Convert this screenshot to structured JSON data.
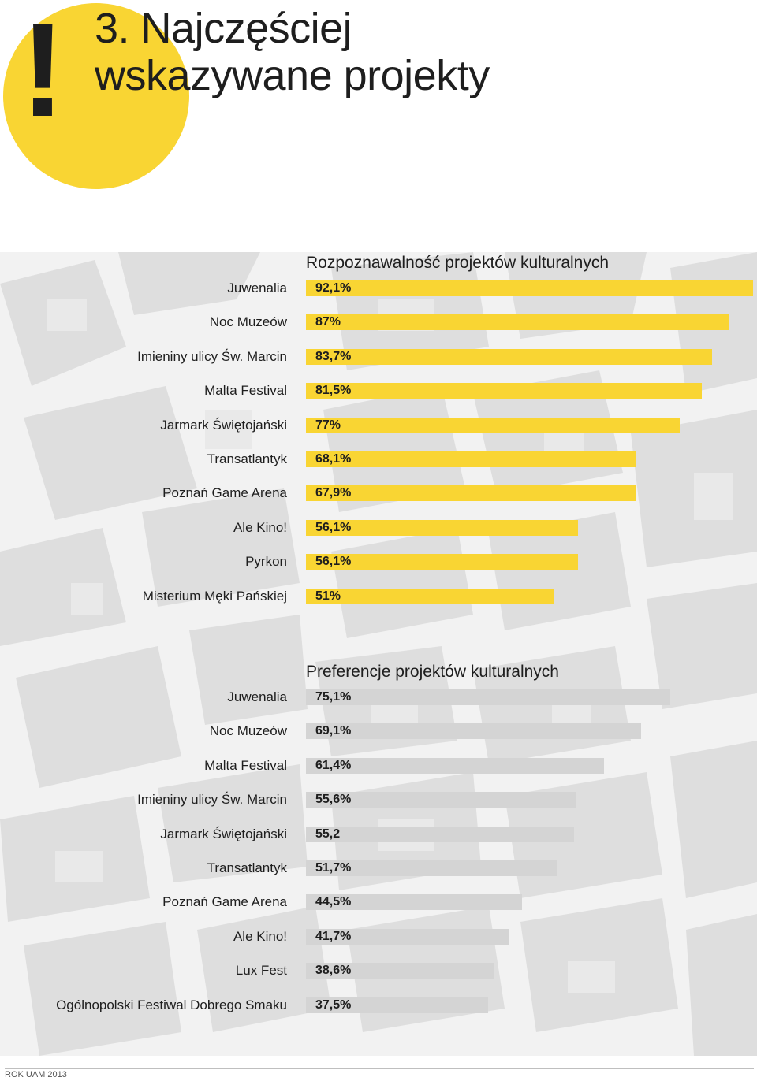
{
  "header": {
    "mark": "!",
    "title_line1": "3. Najczęściej",
    "title_line2": "wskazywane projekty",
    "accent_color": "#f9d533"
  },
  "footer": {
    "text": "ROK UAM 2013"
  },
  "chart_data": [
    {
      "type": "bar",
      "orientation": "horizontal",
      "title": "Rozpoznawalność projektów kulturalnych",
      "color": "#f9d533",
      "xlim": [
        0,
        92.1
      ],
      "categories": [
        "Juwenalia",
        "Noc Muzeów",
        "Imieniny ulicy Św. Marcin",
        "Malta Festival",
        "Jarmark Świętojański",
        "Transatlantyk",
        "Poznań Game Arena",
        "Ale Kino!",
        "Pyrkon",
        "Misterium Męki Pańskiej"
      ],
      "values": [
        92.1,
        87,
        83.7,
        81.5,
        77,
        68.1,
        67.9,
        56.1,
        56.1,
        51
      ],
      "data_labels": [
        "92,1%",
        "87%",
        "83,7%",
        "81,5%",
        "77%",
        "68,1%",
        "67,9%",
        "56,1%",
        "56,1%",
        "51%"
      ]
    },
    {
      "type": "bar",
      "orientation": "horizontal",
      "title": "Preferencje projektów kulturalnych",
      "color": "#d4d4d4",
      "xlim": [
        0,
        92.1
      ],
      "categories": [
        "Juwenalia",
        "Noc Muzeów",
        "Malta Festival",
        "Imieniny ulicy Św. Marcin",
        "Jarmark Świętojański",
        "Transatlantyk",
        "Poznań Game Arena",
        "Ale Kino!",
        "Lux Fest",
        "Ogólnopolski Festiwal Dobrego Smaku"
      ],
      "values": [
        75.1,
        69.1,
        61.4,
        55.6,
        55.2,
        51.7,
        44.5,
        41.7,
        38.6,
        37.5
      ],
      "data_labels": [
        "75,1%",
        "69,1%",
        "61,4%",
        "55,6%",
        "55,2",
        "51,7%",
        "44,5%",
        "41,7%",
        "38,6%",
        "37,5%"
      ]
    }
  ]
}
